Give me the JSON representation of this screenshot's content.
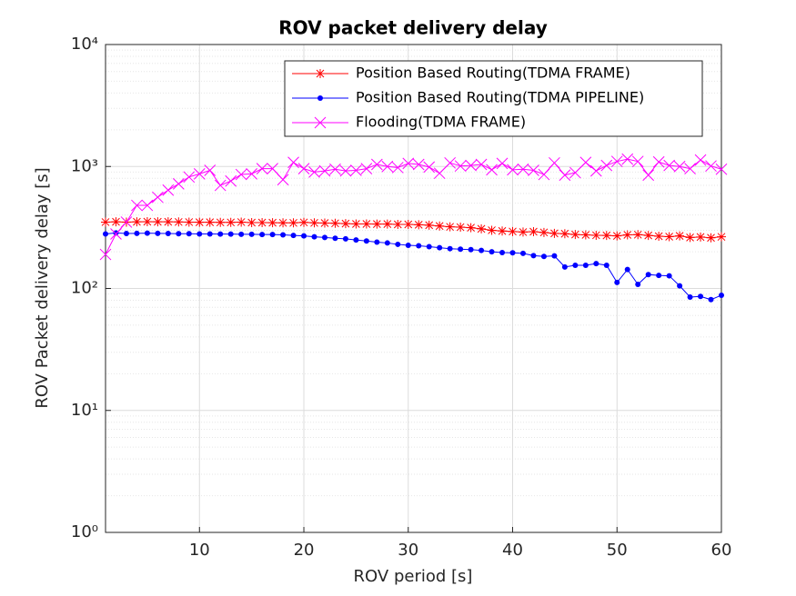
{
  "chart_data": {
    "type": "line",
    "title": "ROV packet delivery delay",
    "x_label": "ROV period [s]",
    "y_label": "ROV Packet delivery delay [s]",
    "log_y": true,
    "grid": true,
    "legend_position": "upper right",
    "xlim": [
      1,
      60
    ],
    "xticks": [
      10,
      20,
      30,
      40,
      50,
      60
    ],
    "ylim": [
      1,
      10000
    ],
    "yticks": [
      {
        "value": 1,
        "label": "10⁰"
      },
      {
        "value": 10,
        "label": "10¹"
      },
      {
        "value": 100,
        "label": "10²"
      },
      {
        "value": 1000,
        "label": "10³"
      },
      {
        "value": 10000,
        "label": "10⁴"
      }
    ],
    "x": [
      1,
      2,
      3,
      4,
      5,
      6,
      7,
      8,
      9,
      10,
      11,
      12,
      13,
      14,
      15,
      16,
      17,
      18,
      19,
      20,
      21,
      22,
      23,
      24,
      25,
      26,
      27,
      28,
      29,
      30,
      31,
      32,
      33,
      34,
      35,
      36,
      37,
      38,
      39,
      40,
      41,
      42,
      43,
      44,
      45,
      46,
      47,
      48,
      49,
      50,
      51,
      52,
      53,
      54,
      55,
      56,
      57,
      58,
      59,
      60
    ],
    "series": [
      {
        "name": "Position Based Routing(TDMA FRAME)",
        "color": "#ff0000",
        "marker": "star",
        "values": [
          350,
          352,
          350,
          352,
          353,
          352,
          352,
          351,
          350,
          349,
          349,
          348,
          348,
          350,
          347,
          347,
          346,
          345,
          345,
          348,
          345,
          344,
          342,
          340,
          338,
          338,
          337,
          337,
          335,
          335,
          333,
          330,
          325,
          320,
          318,
          315,
          308,
          300,
          296,
          293,
          290,
          292,
          288,
          283,
          281,
          277,
          275,
          273,
          272,
          270,
          275,
          276,
          272,
          268,
          266,
          270,
          262,
          264,
          260,
          265
        ]
      },
      {
        "name": "Position Based Routing(TDMA PIPELINE)",
        "color": "#0000ff",
        "marker": "dot",
        "values": [
          280,
          285,
          282,
          283,
          284,
          283,
          282,
          281,
          281,
          280,
          280,
          279,
          279,
          278,
          278,
          277,
          277,
          275,
          272,
          270,
          265,
          262,
          258,
          255,
          250,
          245,
          240,
          236,
          230,
          226,
          224,
          220,
          216,
          212,
          210,
          208,
          205,
          200,
          197,
          196,
          194,
          186,
          183,
          185,
          150,
          155,
          155,
          160,
          155,
          112,
          143,
          108,
          130,
          128,
          127,
          105,
          85,
          86,
          81,
          88
        ]
      },
      {
        "name": "Flooding(TDMA FRAME)",
        "color": "#ff00ff",
        "marker": "x",
        "values": [
          190,
          280,
          350,
          480,
          480,
          560,
          640,
          720,
          820,
          870,
          930,
          700,
          760,
          860,
          870,
          960,
          960,
          780,
          1080,
          960,
          900,
          920,
          950,
          920,
          930,
          960,
          1040,
          1000,
          980,
          1060,
          1040,
          990,
          880,
          1070,
          1010,
          1020,
          1040,
          940,
          1060,
          940,
          950,
          930,
          860,
          1070,
          850,
          890,
          1080,
          920,
          1020,
          1100,
          1150,
          1100,
          850,
          1090,
          1020,
          1000,
          960,
          1130,
          1010,
          950
        ]
      }
    ]
  }
}
